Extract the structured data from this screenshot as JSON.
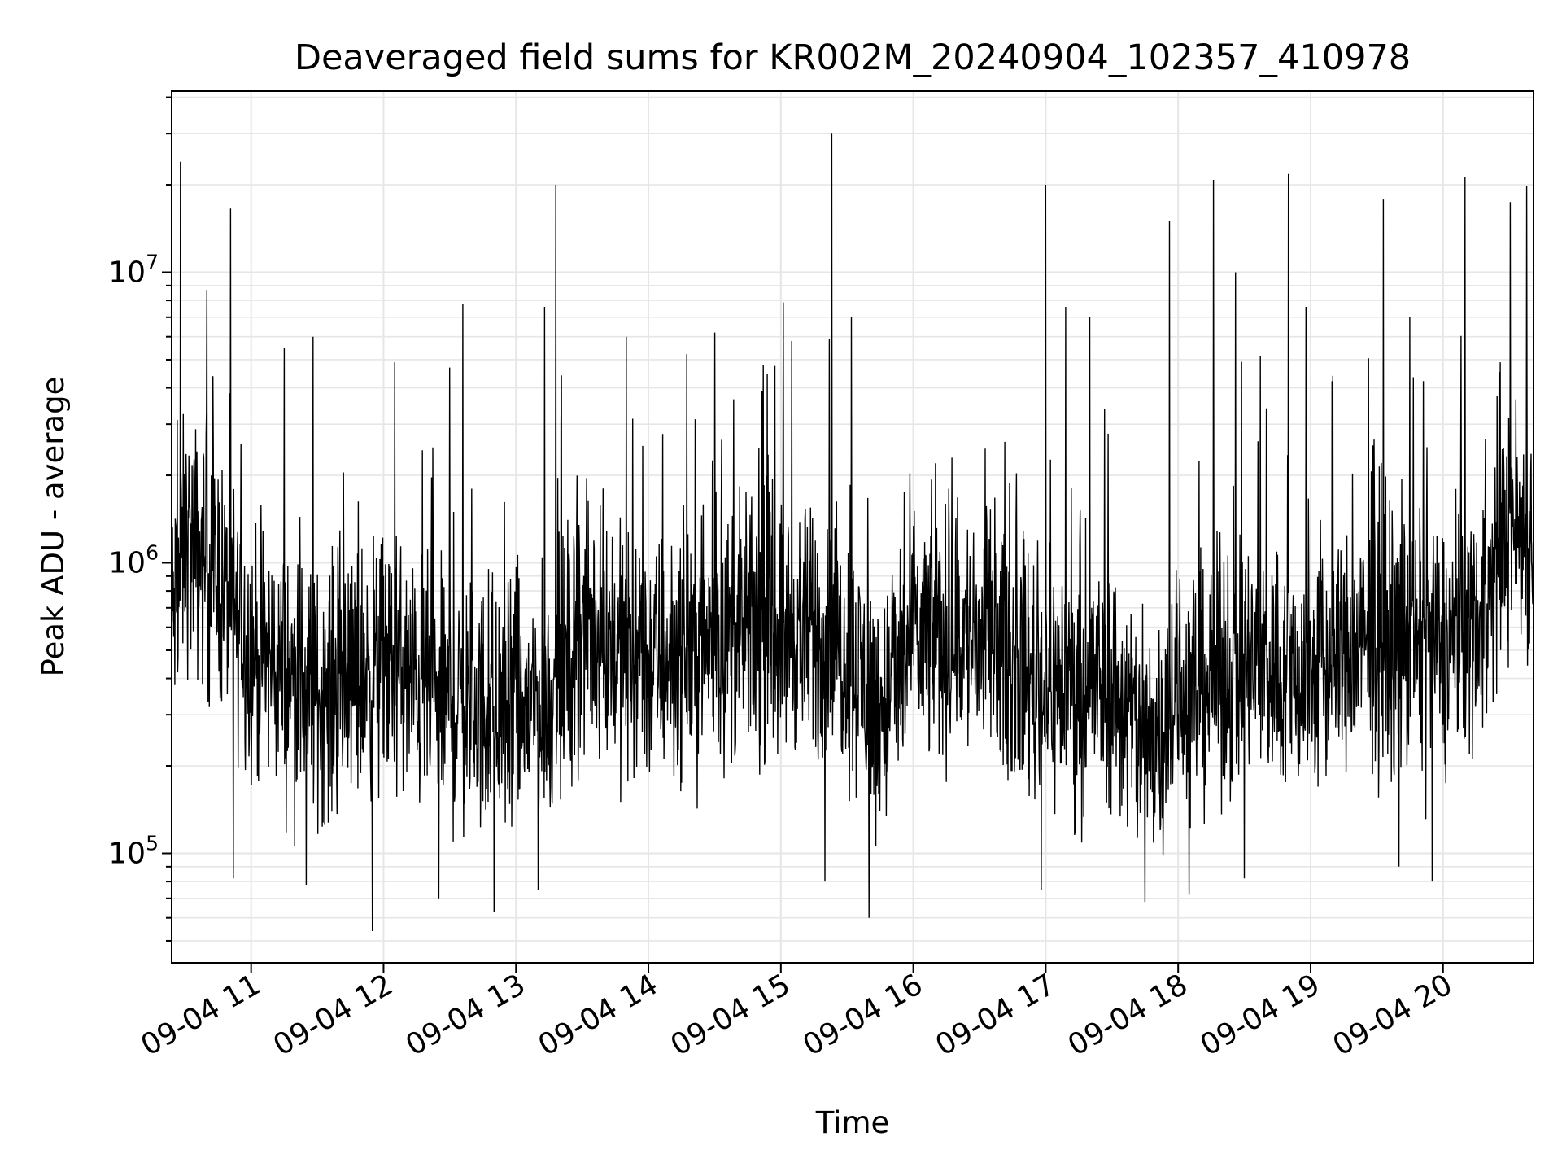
{
  "chart_data": {
    "type": "line",
    "title": "Deaveraged field sums for KR002M_20240904_102357_410978",
    "xlabel": "Time",
    "ylabel": "Peak ADU - average",
    "yscale": "log",
    "ylim": [
      42000,
      42000000
    ],
    "xlim": [
      "2024-09-04 10:24",
      "2024-09-04 20:41"
    ],
    "grid": true,
    "line_color": "#000000",
    "x_ticks": [
      {
        "label": "09-04 11",
        "x": "2024-09-04 11:00"
      },
      {
        "label": "09-04 12",
        "x": "2024-09-04 12:00"
      },
      {
        "label": "09-04 13",
        "x": "2024-09-04 13:00"
      },
      {
        "label": "09-04 14",
        "x": "2024-09-04 14:00"
      },
      {
        "label": "09-04 15",
        "x": "2024-09-04 15:00"
      },
      {
        "label": "09-04 16",
        "x": "2024-09-04 16:00"
      },
      {
        "label": "09-04 17",
        "x": "2024-09-04 17:00"
      },
      {
        "label": "09-04 18",
        "x": "2024-09-04 18:00"
      },
      {
        "label": "09-04 19",
        "x": "2024-09-04 19:00"
      },
      {
        "label": "09-04 20",
        "x": "2024-09-04 20:00"
      }
    ],
    "y_ticks": [
      {
        "base": "10",
        "exp": "5",
        "value": 100000
      },
      {
        "base": "10",
        "exp": "6",
        "value": 1000000
      },
      {
        "base": "10",
        "exp": "7",
        "value": 10000000
      }
    ],
    "trend": [
      [
        "2024-09-04 10:24",
        600000
      ],
      [
        "2024-09-04 10:30",
        1200000
      ],
      [
        "2024-09-04 10:45",
        900000
      ],
      [
        "2024-09-04 11:00",
        500000
      ],
      [
        "2024-09-04 11:30",
        350000
      ],
      [
        "2024-09-04 12:00",
        450000
      ],
      [
        "2024-09-04 12:30",
        330000
      ],
      [
        "2024-09-04 13:00",
        300000
      ],
      [
        "2024-09-04 13:15",
        330000
      ],
      [
        "2024-09-04 13:30",
        600000
      ],
      [
        "2024-09-04 14:00",
        450000
      ],
      [
        "2024-09-04 14:30",
        550000
      ],
      [
        "2024-09-04 15:00",
        600000
      ],
      [
        "2024-09-04 15:30",
        500000
      ],
      [
        "2024-09-04 15:45",
        300000
      ],
      [
        "2024-09-04 16:00",
        550000
      ],
      [
        "2024-09-04 16:30",
        550000
      ],
      [
        "2024-09-04 17:00",
        380000
      ],
      [
        "2024-09-04 17:30",
        380000
      ],
      [
        "2024-09-04 17:45",
        230000
      ],
      [
        "2024-09-04 18:00",
        350000
      ],
      [
        "2024-09-04 18:30",
        450000
      ],
      [
        "2024-09-04 19:00",
        400000
      ],
      [
        "2024-09-04 19:30",
        550000
      ],
      [
        "2024-09-04 20:00",
        500000
      ],
      [
        "2024-09-04 20:20",
        700000
      ],
      [
        "2024-09-04 20:30",
        1400000
      ],
      [
        "2024-09-04 20:41",
        1200000
      ]
    ],
    "spikes_high": [
      [
        "2024-09-04 10:28",
        24000000
      ],
      [
        "2024-09-04 10:40",
        8700000
      ],
      [
        "2024-09-04 11:15",
        5500000
      ],
      [
        "2024-09-04 11:28",
        6000000
      ],
      [
        "2024-09-04 12:05",
        4900000
      ],
      [
        "2024-09-04 12:30",
        4700000
      ],
      [
        "2024-09-04 12:36",
        7800000
      ],
      [
        "2024-09-04 13:13",
        7600000
      ],
      [
        "2024-09-04 13:18",
        20000000
      ],
      [
        "2024-09-04 13:50",
        6000000
      ],
      [
        "2024-09-04 14:30",
        6200000
      ],
      [
        "2024-09-04 14:52",
        4800000
      ],
      [
        "2024-09-04 15:05",
        5800000
      ],
      [
        "2024-09-04 15:22",
        5900000
      ],
      [
        "2024-09-04 15:23",
        30000000
      ],
      [
        "2024-09-04 15:32",
        7000000
      ],
      [
        "2024-09-04 16:10",
        2200000
      ],
      [
        "2024-09-04 17:00",
        20000000
      ],
      [
        "2024-09-04 17:09",
        7600000
      ],
      [
        "2024-09-04 17:20",
        7000000
      ],
      [
        "2024-09-04 17:45",
        3500000
      ],
      [
        "2024-09-04 17:56",
        15000000
      ],
      [
        "2024-09-04 18:05",
        13000000
      ],
      [
        "2024-09-04 18:16",
        20800000
      ],
      [
        "2024-09-04 18:26",
        10000000
      ],
      [
        "2024-09-04 18:40",
        3400000
      ],
      [
        "2024-09-04 18:50",
        21800000
      ],
      [
        "2024-09-04 18:58",
        7600000
      ],
      [
        "2024-09-04 19:10",
        4400000
      ],
      [
        "2024-09-04 19:33",
        17800000
      ],
      [
        "2024-09-04 19:45",
        7000000
      ],
      [
        "2024-09-04 20:10",
        21300000
      ],
      [
        "2024-09-04 20:26",
        4900000
      ],
      [
        "2024-09-04 20:38",
        19800000
      ]
    ],
    "spikes_low": [
      [
        "2024-09-04 10:52",
        82000
      ],
      [
        "2024-09-04 11:25",
        78000
      ],
      [
        "2024-09-04 11:55",
        54000
      ],
      [
        "2024-09-04 12:25",
        70000
      ],
      [
        "2024-09-04 12:50",
        63000
      ],
      [
        "2024-09-04 13:10",
        75000
      ],
      [
        "2024-09-04 15:20",
        80000
      ],
      [
        "2024-09-04 15:40",
        60000
      ],
      [
        "2024-09-04 16:58",
        75000
      ],
      [
        "2024-09-04 17:45",
        68000
      ],
      [
        "2024-09-04 18:05",
        72000
      ],
      [
        "2024-09-04 18:30",
        82000
      ],
      [
        "2024-09-04 19:40",
        90000
      ],
      [
        "2024-09-04 19:55",
        80000
      ]
    ]
  }
}
